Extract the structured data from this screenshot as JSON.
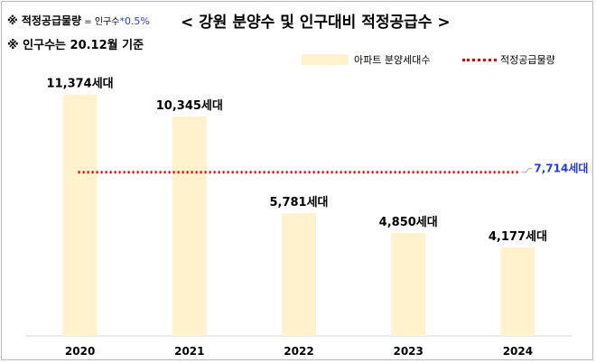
{
  "notes": {
    "line1_prefix": "※ 적정공급물량",
    "line1_eq": " = 인구수",
    "line1_rate": "*0.5%",
    "line2": "※ 인구수는 20.12월  기준"
  },
  "chart_data": {
    "type": "bar",
    "title": "< 강원  분양수 및 인구대비 적정공급수 >",
    "categories": [
      "2020",
      "2021",
      "2022",
      "2023",
      "2024"
    ],
    "series": [
      {
        "name": "아파트 분양세대수",
        "values": [
          11374,
          10345,
          5781,
          4850,
          4177
        ],
        "color": "#fff2cc",
        "data_labels": [
          "11,374세대",
          "10,345세대",
          "5,781세대",
          "4,850세대",
          "4,177세대"
        ]
      },
      {
        "name": "적정공급물량",
        "type": "line",
        "value": 7714,
        "color": "#e00000",
        "label": "7,714세대",
        "label_color": "#2a3bd6"
      }
    ],
    "ylim": [
      0,
      12000
    ],
    "grid": false,
    "legend": "top-right"
  }
}
